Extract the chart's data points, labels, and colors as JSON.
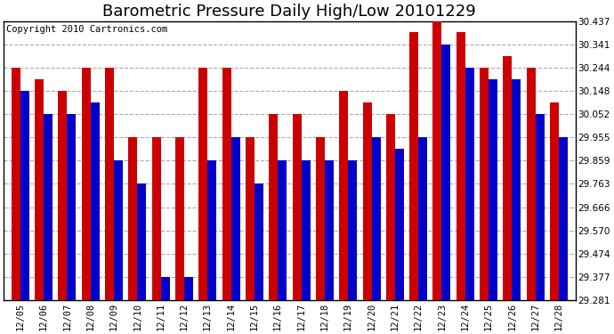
{
  "title": "Barometric Pressure Daily High/Low 20101229",
  "copyright": "Copyright 2010 Cartronics.com",
  "dates": [
    "12/05",
    "12/06",
    "12/07",
    "12/08",
    "12/09",
    "12/10",
    "12/11",
    "12/12",
    "12/13",
    "12/14",
    "12/15",
    "12/16",
    "12/17",
    "12/18",
    "12/19",
    "12/20",
    "12/21",
    "12/22",
    "12/23",
    "12/24",
    "12/25",
    "12/26",
    "12/27",
    "12/28"
  ],
  "highs": [
    30.244,
    30.196,
    30.148,
    30.244,
    30.244,
    29.955,
    29.955,
    29.955,
    30.244,
    30.244,
    29.955,
    30.052,
    30.052,
    29.955,
    30.148,
    30.1,
    30.052,
    30.39,
    30.437,
    30.39,
    30.244,
    30.292,
    30.244,
    30.1
  ],
  "lows": [
    30.148,
    30.052,
    30.052,
    30.1,
    29.859,
    29.763,
    29.377,
    29.377,
    29.859,
    29.955,
    29.763,
    29.859,
    29.859,
    29.859,
    29.859,
    29.955,
    29.907,
    29.955,
    30.341,
    30.244,
    30.196,
    30.196,
    30.052,
    29.955
  ],
  "ymin": 29.281,
  "ymax": 30.437,
  "yticks": [
    29.281,
    29.377,
    29.474,
    29.57,
    29.666,
    29.763,
    29.859,
    29.955,
    30.052,
    30.148,
    30.244,
    30.341,
    30.437
  ],
  "high_color": "#cc0000",
  "low_color": "#0000cc",
  "bg_color": "#ffffff",
  "grid_color": "#aaaaaa",
  "title_fontsize": 13,
  "copyright_fontsize": 7.5,
  "tick_fontsize": 7.5,
  "bar_width": 0.38
}
